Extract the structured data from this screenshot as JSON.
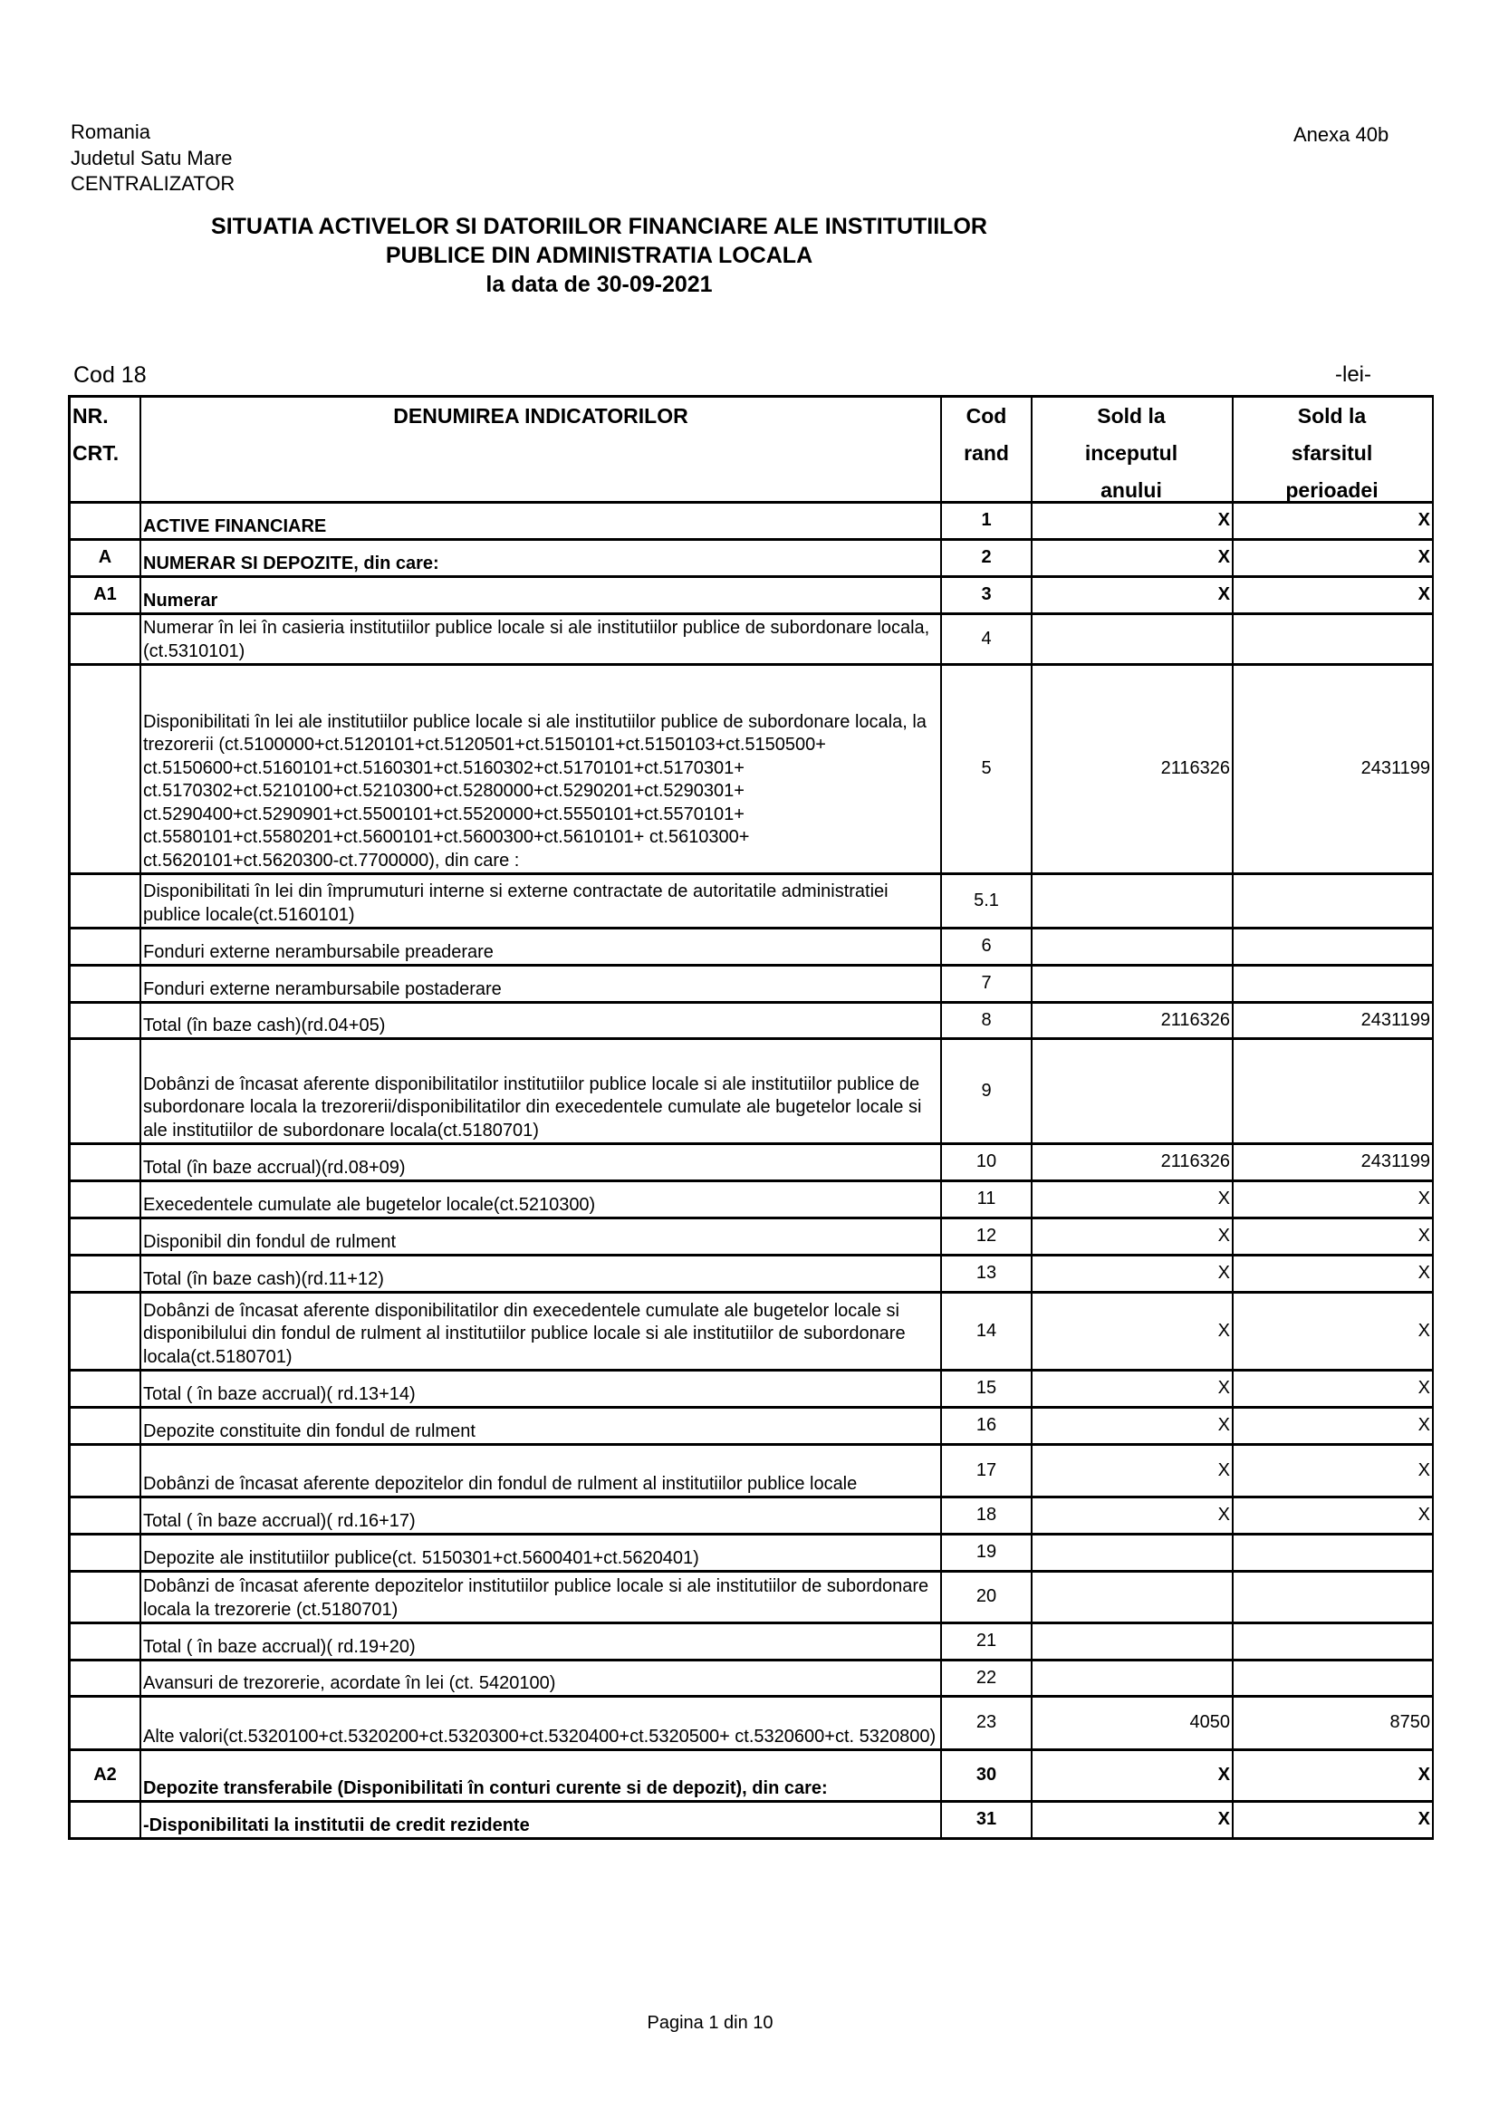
{
  "header": {
    "left_lines": [
      "Romania",
      "Judetul Satu Mare",
      "CENTRALIZATOR"
    ],
    "annex": "Anexa 40b",
    "title_lines": [
      "SITUATIA ACTIVELOR SI DATORIILOR FINANCIARE ALE INSTITUTIILOR",
      "PUBLICE DIN ADMINISTRATIA LOCALA",
      "la data de 30-09-2021"
    ],
    "cod": "Cod 18",
    "unit": "-lei-"
  },
  "table": {
    "columns": [
      "NR.\nCRT.",
      "DENUMIREA INDICATORILOR",
      "Cod\nrand",
      "Sold la\ninceputul\nanului",
      "Sold la\nsfarsitul\nperioadei"
    ],
    "rows": [
      {
        "nr": "",
        "name": "ACTIVE FINANCIARE",
        "cod": "1",
        "v1": "X",
        "v2": "X",
        "bold": true
      },
      {
        "nr": "A",
        "name": "NUMERAR SI DEPOZITE, din care:",
        "cod": "2",
        "v1": "X",
        "v2": "X",
        "bold": true
      },
      {
        "nr": "A1",
        "name": "Numerar",
        "cod": "3",
        "v1": "X",
        "v2": "X",
        "bold": true
      },
      {
        "nr": "",
        "name": "Numerar în lei în casieria institutiilor publice locale si ale institutiilor publice de subordonare locala,(ct.5310101)",
        "cod": "4",
        "v1": "",
        "v2": ""
      },
      {
        "nr": "",
        "name": "Disponibilitati în lei ale institutiilor publice locale si ale institutiilor publice de subordonare locala, la trezorerii (ct.5100000+ct.5120101+ct.5120501+ct.5150101+ct.5150103+ct.5150500+ ct.5150600+ct.5160101+ct.5160301+ct.5160302+ct.5170101+ct.5170301+ ct.5170302+ct.5210100+ct.5210300+ct.5280000+ct.5290201+ct.5290301+ ct.5290400+ct.5290901+ct.5500101+ct.5520000+ct.5550101+ct.5570101+ ct.5580101+ct.5580201+ct.5600101+ct.5600300+ct.5610101+ ct.5610300+ ct.5620101+ct.5620300-ct.7700000), din care :",
        "cod": "5",
        "v1": "2116326",
        "v2": "2431199"
      },
      {
        "nr": "",
        "name": "Disponibilitati în lei din împrumuturi interne si externe contractate de autoritatile administratiei publice locale(ct.5160101)",
        "cod": "5.1",
        "v1": "",
        "v2": ""
      },
      {
        "nr": "",
        "name": "Fonduri externe nerambursabile preaderare",
        "cod": "6",
        "v1": "",
        "v2": ""
      },
      {
        "nr": "",
        "name": "Fonduri externe nerambursabile postaderare",
        "cod": "7",
        "v1": "",
        "v2": ""
      },
      {
        "nr": "",
        "name": "Total (în baze cash)(rd.04+05)",
        "cod": "8",
        "v1": "2116326",
        "v2": "2431199"
      },
      {
        "nr": "",
        "name": "Dobânzi de încasat aferente disponibilitatilor institutiilor publice locale si ale institutiilor  publice  de subordonare locala  la trezorerii/disponibilitatilor din execedentele cumulate ale bugetelor locale  si ale institutiilor de subordonare locala(ct.5180701)",
        "cod": "9",
        "v1": "",
        "v2": ""
      },
      {
        "nr": "",
        "name": "Total (în baze accrual)(rd.08+09)",
        "cod": "10",
        "v1": "2116326",
        "v2": "2431199"
      },
      {
        "nr": "",
        "name": "Execedentele cumulate ale bugetelor locale(ct.5210300)",
        "cod": "11",
        "v1": "X",
        "v2": "X"
      },
      {
        "nr": "",
        "name": "Disponibil din fondul de rulment",
        "cod": "12",
        "v1": "X",
        "v2": "X"
      },
      {
        "nr": "",
        "name": "Total (în baze cash)(rd.11+12)",
        "cod": "13",
        "v1": "X",
        "v2": "X"
      },
      {
        "nr": "",
        "name": "Dobânzi de încasat aferente disponibilitatilor din execedentele cumulate ale bugetelor locale si disponibilului din fondul de rulment al institutiilor publice locale si ale institutiilor de subordonare  locala(ct.5180701)",
        "cod": "14",
        "v1": "X",
        "v2": "X"
      },
      {
        "nr": "",
        "name": "Total ( în baze accrual)( rd.13+14)",
        "cod": "15",
        "v1": "X",
        "v2": "X"
      },
      {
        "nr": "",
        "name": "Depozite constituite din fondul de rulment",
        "cod": "16",
        "v1": "X",
        "v2": "X"
      },
      {
        "nr": "",
        "name": "Dobânzi de încasat aferente depozitelor din fondul de rulment al   institutiilor publice locale",
        "cod": "17",
        "v1": "X",
        "v2": "X"
      },
      {
        "nr": "",
        "name": "Total ( în baze accrual)( rd.16+17)",
        "cod": "18",
        "v1": "X",
        "v2": "X"
      },
      {
        "nr": "",
        "name": "Depozite ale institutiilor publice(ct. 5150301+ct.5600401+ct.5620401)",
        "cod": "19",
        "v1": "",
        "v2": ""
      },
      {
        "nr": "",
        "name": "Dobânzi   de încasat aferente  depozitelor  institutiilor publice locale si ale institutiilor de subordonare  locala  la  trezorerie (ct.5180701)",
        "cod": "20",
        "v1": "",
        "v2": ""
      },
      {
        "nr": "",
        "name": "Total ( în baze accrual)( rd.19+20)",
        "cod": "21",
        "v1": "",
        "v2": ""
      },
      {
        "nr": "",
        "name": "Avansuri de trezorerie, acordate în lei (ct. 5420100)",
        "cod": "22",
        "v1": "",
        "v2": ""
      },
      {
        "nr": "",
        "name": "Alte valori(ct.5320100+ct.5320200+ct.5320300+ct.5320400+ct.5320500+ ct.5320600+ct. 5320800)",
        "cod": "23",
        "v1": "4050",
        "v2": "8750"
      },
      {
        "nr": "A2",
        "name": "Depozite transferabile (Disponibilitati în conturi curente si de depozit), din care:",
        "cod": "30",
        "v1": "X",
        "v2": "X",
        "bold": true
      },
      {
        "nr": "",
        "name": "-Disponibilitati la institutii de credit rezidente",
        "cod": "31",
        "v1": "X",
        "v2": "X",
        "bold": true
      }
    ]
  },
  "footer": {
    "page": "Pagina 1 din 10"
  }
}
